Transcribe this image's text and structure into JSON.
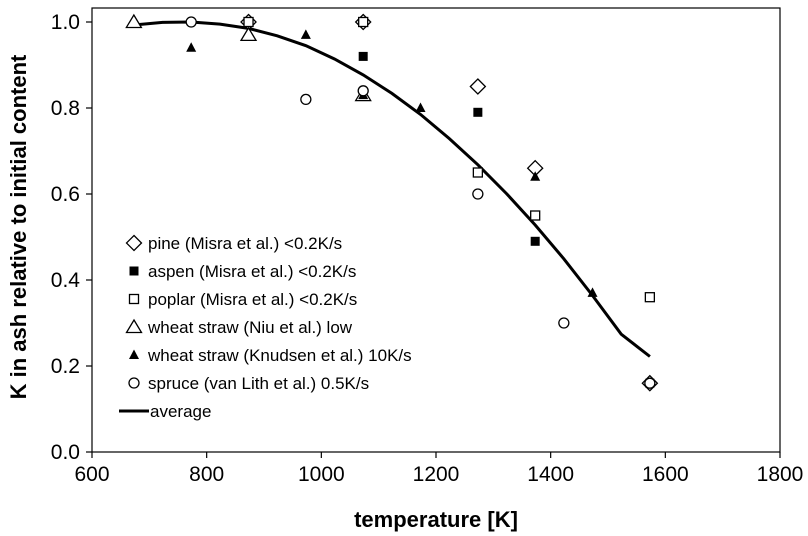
{
  "chart_data": {
    "type": "scatter",
    "title": "",
    "xlabel": "temperature [K]",
    "ylabel": "K in ash relative to initial content",
    "xlim": [
      600,
      1800
    ],
    "ylim": [
      0.0,
      1.0
    ],
    "xticks": [
      "600",
      "800",
      "1000",
      "1200",
      "1400",
      "1600",
      "1800"
    ],
    "yticks": [
      "0.0",
      "0.2",
      "0.4",
      "0.6",
      "0.8",
      "1.0"
    ],
    "grid": false,
    "legend_position": "bottom-left",
    "series": [
      {
        "name": "pine (Misra et al.) <0.2K/s",
        "marker": "diamond-open",
        "points": [
          [
            873,
            1.0
          ],
          [
            1073,
            1.0
          ],
          [
            1273,
            0.85
          ],
          [
            1373,
            0.66
          ],
          [
            1573,
            0.16
          ]
        ]
      },
      {
        "name": "aspen (Misra et al.) <0.2K/s",
        "marker": "square-filled",
        "points": [
          [
            873,
            1.0
          ],
          [
            1073,
            0.92
          ],
          [
            1273,
            0.79
          ],
          [
            1373,
            0.49
          ],
          [
            1573,
            0.16
          ]
        ]
      },
      {
        "name": "poplar (Misra et al.) <0.2K/s",
        "marker": "square-open",
        "points": [
          [
            873,
            1.0
          ],
          [
            1073,
            1.0
          ],
          [
            1273,
            0.65
          ],
          [
            1373,
            0.55
          ],
          [
            1573,
            0.36
          ]
        ]
      },
      {
        "name": "wheat straw (Niu et al.) low",
        "marker": "triangle-open",
        "points": [
          [
            673,
            1.0
          ],
          [
            873,
            0.97
          ],
          [
            1073,
            0.83
          ]
        ]
      },
      {
        "name": "wheat straw (Knudsen et al.) 10K/s",
        "marker": "triangle-filled",
        "points": [
          [
            773,
            0.94
          ],
          [
            973,
            0.97
          ],
          [
            1073,
            0.83
          ],
          [
            1173,
            0.8
          ],
          [
            1373,
            0.64
          ],
          [
            1473,
            0.37
          ]
        ]
      },
      {
        "name": "spruce (van Lith et al.) 0.5K/s",
        "marker": "circle-open",
        "points": [
          [
            773,
            1.0
          ],
          [
            973,
            0.82
          ],
          [
            1073,
            0.84
          ],
          [
            1273,
            0.6
          ],
          [
            1423,
            0.3
          ],
          [
            1573,
            0.16
          ]
        ]
      },
      {
        "name": "average",
        "marker": "line",
        "points": [
          [
            673,
            0.993
          ],
          [
            723,
            0.999
          ],
          [
            773,
            1.0
          ],
          [
            823,
            0.995
          ],
          [
            873,
            0.985
          ],
          [
            923,
            0.968
          ],
          [
            973,
            0.945
          ],
          [
            1023,
            0.914
          ],
          [
            1073,
            0.877
          ],
          [
            1123,
            0.834
          ],
          [
            1173,
            0.785
          ],
          [
            1223,
            0.729
          ],
          [
            1273,
            0.668
          ],
          [
            1323,
            0.601
          ],
          [
            1373,
            0.528
          ],
          [
            1423,
            0.449
          ],
          [
            1473,
            0.364
          ],
          [
            1523,
            0.274
          ],
          [
            1573,
            0.222
          ]
        ]
      }
    ]
  }
}
